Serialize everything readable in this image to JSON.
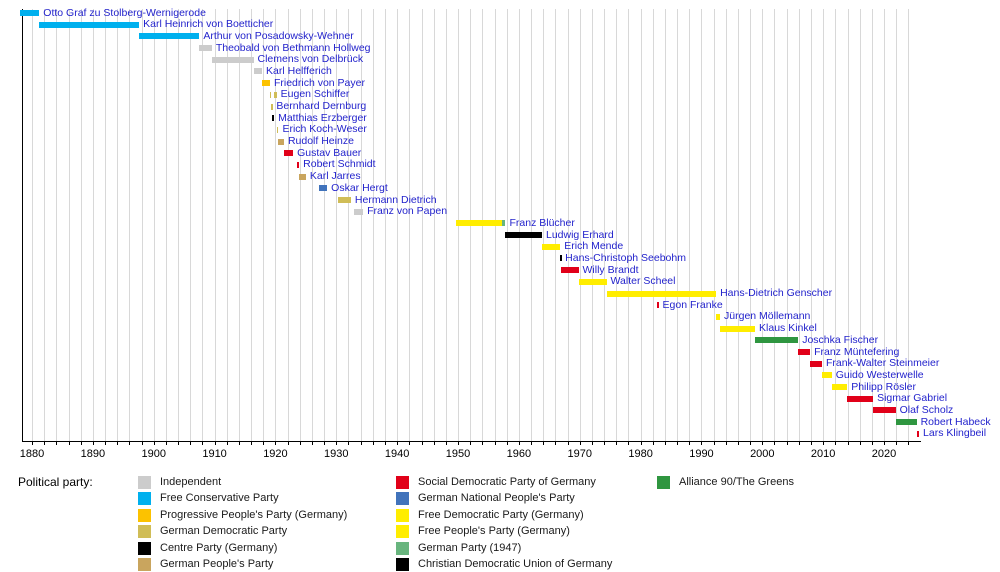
{
  "page": {
    "background": "#ffffff"
  },
  "legend": {
    "title": "Political party:",
    "columns": [
      [
        "ind",
        "fkp",
        "fovp",
        "ddp",
        "zentrum",
        "dvp"
      ],
      [
        "spd",
        "dnvp",
        "fdp",
        "fvp",
        "dp",
        "cdu"
      ],
      [
        "gruene"
      ]
    ]
  },
  "parties": {
    "ind": {
      "label": "Independent",
      "color": "#cccccc"
    },
    "fkp": {
      "label": "Free Conservative Party",
      "color": "#00b0ee"
    },
    "fovp": {
      "label": "Progressive People's Party (Germany)",
      "color": "#fcc200"
    },
    "ddp": {
      "label": "German Democratic Party",
      "color": "#d0bd57"
    },
    "zentrum": {
      "label": "Centre Party (Germany)",
      "color": "#000000"
    },
    "dvp": {
      "label": "German People's Party",
      "color": "#c9a55e"
    },
    "spd": {
      "label": "Social Democratic Party of Germany",
      "color": "#e10019"
    },
    "dnvp": {
      "label": "German National People's Party",
      "color": "#4173bb"
    },
    "fdp": {
      "label": "Free Democratic Party (Germany)",
      "color": "#ffed00"
    },
    "fvp": {
      "label": "Free People's Party (Germany)",
      "color": "#ffed00"
    },
    "dp": {
      "label": "German Party (1947)",
      "color": "#68b57e"
    },
    "cdu": {
      "label": "Christian Democratic Union of Germany",
      "color": "#000000"
    },
    "gruene": {
      "label": "Alliance 90/The Greens",
      "color": "#2f9640"
    }
  },
  "chart_data": {
    "type": "bar",
    "subtype": "horizontal-timeline",
    "title": "",
    "xlabel": "",
    "ylabel": "",
    "x_axis": {
      "range_years": [
        1878,
        2026
      ],
      "tick_labels": [
        1880,
        1890,
        1900,
        1910,
        1920,
        1930,
        1940,
        1950,
        1960,
        1970,
        1980,
        1990,
        2000,
        2010,
        2020
      ],
      "minor_tick_step_years": 2,
      "grid": true
    },
    "people": [
      {
        "name": "Otto Graf zu Stolberg-Wernigerode",
        "segments": [
          {
            "start": 1878.0,
            "end": 1881.2,
            "party": "fkp"
          }
        ]
      },
      {
        "name": "Karl Heinrich von Boetticher",
        "segments": [
          {
            "start": 1881.2,
            "end": 1897.6,
            "party": "fkp"
          }
        ]
      },
      {
        "name": "Arthur von Posadowsky-Wehner",
        "segments": [
          {
            "start": 1897.6,
            "end": 1907.5,
            "party": "fkp"
          }
        ]
      },
      {
        "name": "Theobald von Bethmann Hollweg",
        "segments": [
          {
            "start": 1907.5,
            "end": 1909.55,
            "party": "ind"
          }
        ]
      },
      {
        "name": "Clemens von Delbrück",
        "segments": [
          {
            "start": 1909.55,
            "end": 1916.4,
            "party": "ind"
          }
        ]
      },
      {
        "name": "Karl Helfferich",
        "segments": [
          {
            "start": 1916.4,
            "end": 1917.8,
            "party": "ind"
          }
        ]
      },
      {
        "name": "Friedrich von Payer",
        "segments": [
          {
            "start": 1917.8,
            "end": 1919.1,
            "party": "fovp"
          }
        ]
      },
      {
        "name": "Eugen Schiffer",
        "segments": [
          {
            "start": 1919.1,
            "end": 1919.32,
            "party": "ddp"
          },
          {
            "start": 1919.78,
            "end": 1920.2,
            "party": "ddp"
          }
        ]
      },
      {
        "name": "Bernhard Dernburg",
        "segments": [
          {
            "start": 1919.32,
            "end": 1919.5,
            "party": "ddp"
          }
        ]
      },
      {
        "name": "Matthias Erzberger",
        "segments": [
          {
            "start": 1919.5,
            "end": 1919.78,
            "party": "zentrum"
          }
        ]
      },
      {
        "name": "Erich Koch-Weser",
        "segments": [
          {
            "start": 1920.2,
            "end": 1920.5,
            "party": "ddp"
          }
        ]
      },
      {
        "name": "Rudolf Heinze",
        "segments": [
          {
            "start": 1920.5,
            "end": 1921.4,
            "party": "dvp"
          }
        ]
      },
      {
        "name": "Gustav Bauer",
        "segments": [
          {
            "start": 1921.4,
            "end": 1922.9,
            "party": "spd"
          }
        ]
      },
      {
        "name": "Robert Schmidt",
        "segments": [
          {
            "start": 1923.6,
            "end": 1923.9,
            "party": "spd"
          }
        ]
      },
      {
        "name": "Karl Jarres",
        "segments": [
          {
            "start": 1923.9,
            "end": 1925.0,
            "party": "dvp"
          }
        ]
      },
      {
        "name": "Oskar Hergt",
        "segments": [
          {
            "start": 1927.1,
            "end": 1928.5,
            "party": "dnvp"
          }
        ]
      },
      {
        "name": "Hermann Dietrich",
        "segments": [
          {
            "start": 1930.25,
            "end": 1932.4,
            "party": "ddp"
          }
        ]
      },
      {
        "name": "Franz von Papen",
        "segments": [
          {
            "start": 1932.9,
            "end": 1934.4,
            "party": "ind"
          }
        ]
      },
      {
        "name": "Franz Blücher",
        "segments": [
          {
            "start": 1949.7,
            "end": 1957.15,
            "party": "fdp"
          },
          {
            "start": 1957.15,
            "end": 1957.8,
            "party": "dp"
          }
        ]
      },
      {
        "name": "Ludwig Erhard",
        "segments": [
          {
            "start": 1957.8,
            "end": 1963.8,
            "party": "cdu"
          }
        ]
      },
      {
        "name": "Erich Mende",
        "segments": [
          {
            "start": 1963.8,
            "end": 1966.8,
            "party": "fdp"
          }
        ]
      },
      {
        "name": "Hans-Christoph Seebohm",
        "segments": [
          {
            "start": 1966.8,
            "end": 1966.95,
            "party": "cdu"
          }
        ]
      },
      {
        "name": "Willy Brandt",
        "segments": [
          {
            "start": 1966.95,
            "end": 1969.8,
            "party": "spd"
          }
        ]
      },
      {
        "name": "Walter Scheel",
        "segments": [
          {
            "start": 1969.8,
            "end": 1974.4,
            "party": "fdp"
          }
        ]
      },
      {
        "name": "Hans-Dietrich Genscher",
        "segments": [
          {
            "start": 1974.4,
            "end": 1992.4,
            "party": "fdp"
          }
        ]
      },
      {
        "name": "Egon Franke",
        "segments": [
          {
            "start": 1982.7,
            "end": 1982.95,
            "party": "spd"
          }
        ]
      },
      {
        "name": "Jürgen Möllemann",
        "segments": [
          {
            "start": 1992.4,
            "end": 1993.05,
            "party": "fdp"
          }
        ]
      },
      {
        "name": "Klaus Kinkel",
        "segments": [
          {
            "start": 1993.05,
            "end": 1998.8,
            "party": "fdp"
          }
        ]
      },
      {
        "name": "Joschka Fischer",
        "segments": [
          {
            "start": 1998.8,
            "end": 2005.9,
            "party": "gruene"
          }
        ]
      },
      {
        "name": "Franz Müntefering",
        "segments": [
          {
            "start": 2005.9,
            "end": 2007.85,
            "party": "spd"
          }
        ]
      },
      {
        "name": "Frank-Walter Steinmeier",
        "segments": [
          {
            "start": 2007.85,
            "end": 2009.8,
            "party": "spd"
          }
        ]
      },
      {
        "name": "Guido Westerwelle",
        "segments": [
          {
            "start": 2009.8,
            "end": 2011.4,
            "party": "fdp"
          }
        ]
      },
      {
        "name": "Philipp Rösler",
        "segments": [
          {
            "start": 2011.4,
            "end": 2013.95,
            "party": "fdp"
          }
        ]
      },
      {
        "name": "Sigmar Gabriel",
        "segments": [
          {
            "start": 2013.95,
            "end": 2018.2,
            "party": "spd"
          }
        ]
      },
      {
        "name": "Olaf Scholz",
        "segments": [
          {
            "start": 2018.2,
            "end": 2021.9,
            "party": "spd"
          }
        ]
      },
      {
        "name": "Robert Habeck",
        "segments": [
          {
            "start": 2021.9,
            "end": 2025.35,
            "party": "gruene"
          }
        ]
      },
      {
        "name": "Lars Klingbeil",
        "segments": [
          {
            "start": 2025.35,
            "end": 2025.75,
            "party": "spd"
          }
        ]
      }
    ]
  }
}
